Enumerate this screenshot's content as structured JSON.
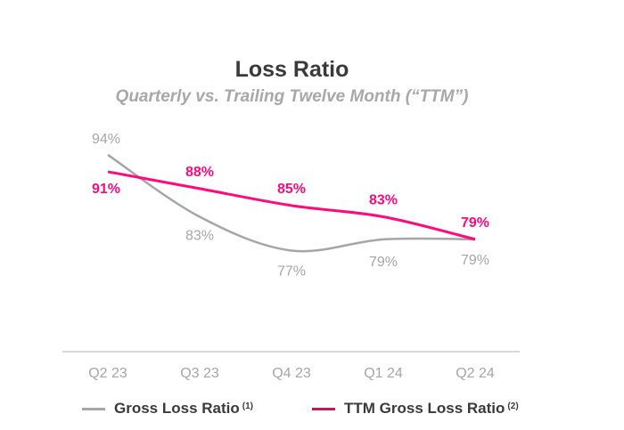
{
  "chart_data": {
    "type": "line",
    "title": "Loss Ratio",
    "subtitle": "Quarterly vs. Trailing Twelve Month (“TTM”)",
    "categories": [
      "Q2 23",
      "Q3 23",
      "Q4 23",
      "Q1 24",
      "Q2 24"
    ],
    "series": [
      {
        "name": "Gross Loss Ratio",
        "footnote": "(1)",
        "values": [
          94,
          83,
          77,
          79,
          79
        ],
        "labels": [
          "94%",
          "83%",
          "77%",
          "79%",
          "79%"
        ],
        "color": "#a6a6a6"
      },
      {
        "name": "TTM Gross Loss Ratio",
        "footnote": "(2)",
        "values": [
          91,
          88,
          85,
          83,
          79
        ],
        "labels": [
          "91%",
          "88%",
          "85%",
          "83%",
          "79%"
        ],
        "color": "#ff0a7a"
      }
    ],
    "ylim": [
      60,
      100
    ],
    "grid": false,
    "legend": "bottom"
  }
}
